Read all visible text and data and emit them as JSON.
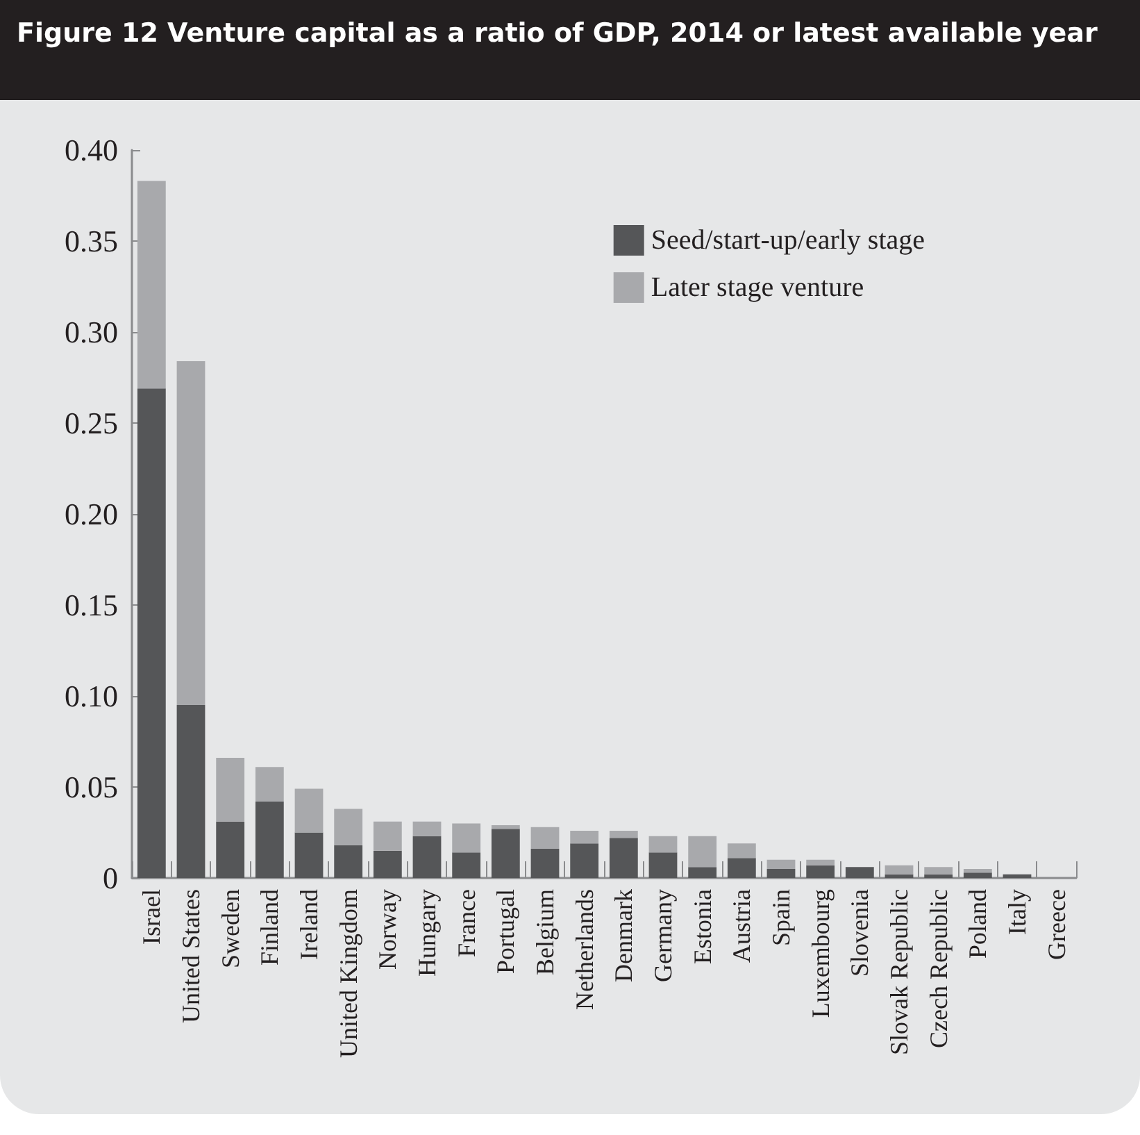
{
  "chart_data": {
    "type": "bar",
    "title": "Figure 12  Venture capital as a ratio of GDP, 2014 or latest available year",
    "categories": [
      "Israel",
      "United States",
      "Sweden",
      "Finland",
      "Ireland",
      "United Kingdom",
      "Norway",
      "Hungary",
      "France",
      "Portugal",
      "Belgium",
      "Netherlands",
      "Denmark",
      "Germany",
      "Estonia",
      "Austria",
      "Spain",
      "Luxembourg",
      "Slovenia",
      "Slovak Republic",
      "Czech Republic",
      "Poland",
      "Italy",
      "Greece"
    ],
    "series": [
      {
        "name": "Seed/start-up/early stage",
        "color": "#555658",
        "values": [
          0.269,
          0.095,
          0.031,
          0.042,
          0.025,
          0.018,
          0.015,
          0.023,
          0.014,
          0.027,
          0.016,
          0.019,
          0.022,
          0.014,
          0.006,
          0.011,
          0.005,
          0.007,
          0.006,
          0.002,
          0.002,
          0.003,
          0.002,
          null
        ]
      },
      {
        "name": "Later stage venture",
        "color": "#a8a9ac",
        "values": [
          0.114,
          0.189,
          0.035,
          0.019,
          0.024,
          0.02,
          0.016,
          0.008,
          0.016,
          0.002,
          0.012,
          0.007,
          0.004,
          0.009,
          0.017,
          0.008,
          0.005,
          0.003,
          null,
          0.005,
          0.004,
          0.002,
          null,
          null
        ]
      }
    ],
    "stacked": true,
    "ylim": [
      0,
      0.4
    ],
    "yticks": [
      {
        "value": 0,
        "label": "0"
      },
      {
        "value": 0.05,
        "label": "0.05"
      },
      {
        "value": 0.1,
        "label": "0.10"
      },
      {
        "value": 0.15,
        "label": "0.15"
      },
      {
        "value": 0.2,
        "label": "0.20"
      },
      {
        "value": 0.25,
        "label": "0.25"
      },
      {
        "value": 0.3,
        "label": "0.30"
      },
      {
        "value": 0.35,
        "label": "0.35"
      },
      {
        "value": 0.4,
        "label": "0.40"
      }
    ],
    "grid": false,
    "legend": "top right"
  }
}
